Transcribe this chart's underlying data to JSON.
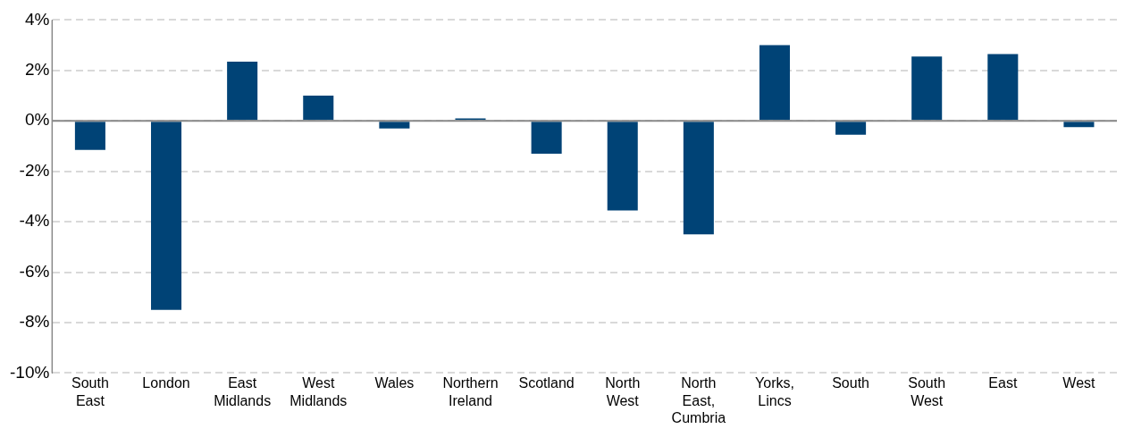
{
  "chart_data": {
    "type": "bar",
    "categories": [
      "South East",
      "London",
      "East Midlands",
      "West Midlands",
      "Wales",
      "Northern Ireland",
      "Scotland",
      "North West",
      "North East, Cumbria",
      "Yorks, Lincs",
      "South",
      "South West",
      "East",
      "West"
    ],
    "values": [
      -1.15,
      -7.5,
      2.35,
      1.0,
      -0.3,
      0.1,
      -1.3,
      -3.55,
      -4.5,
      3.0,
      -0.55,
      2.55,
      2.65,
      -0.25
    ],
    "color": "#004376",
    "ylim": [
      -10,
      4
    ],
    "yticks": [
      {
        "value": -10,
        "label": "-10%"
      },
      {
        "value": -8,
        "label": "-8%"
      },
      {
        "value": -6,
        "label": "-6%"
      },
      {
        "value": -4,
        "label": "-4%"
      },
      {
        "value": -2,
        "label": "-2%"
      },
      {
        "value": 0,
        "label": "0%"
      },
      {
        "value": 2,
        "label": "2%"
      },
      {
        "value": 4,
        "label": "4%"
      }
    ],
    "grid": "y",
    "ref_lines": [
      {
        "axis": "y",
        "value": 0,
        "color": "#888888",
        "line_style": "solid"
      }
    ]
  }
}
